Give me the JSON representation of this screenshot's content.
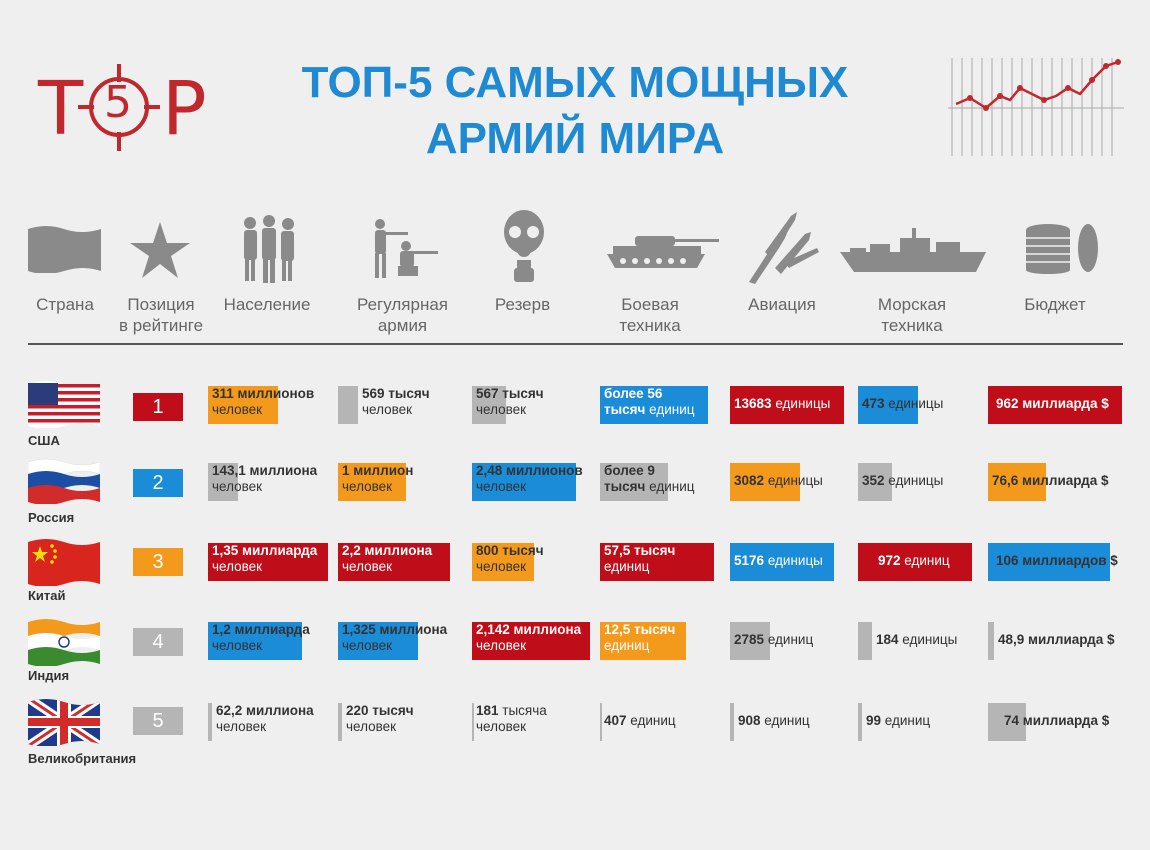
{
  "logo": {
    "left": "T",
    "center": "5",
    "right": "P"
  },
  "title": {
    "line1": "ТОП-5 САМЫХ МОЩНЫХ",
    "line2": "АРМИЙ МИРА"
  },
  "colors": {
    "red": "#bf0e19",
    "blue": "#1a8cd8",
    "orange": "#f39a1c",
    "gray": "#b5b5b5",
    "title": "#1f8ad1"
  },
  "headers": {
    "country": "Страна",
    "rank_l1": "Позиция",
    "rank_l2": "в рейтинге",
    "population": "Население",
    "army_l1": "Регулярная",
    "army_l2": "армия",
    "reserve": "Резерв",
    "tech_l1": "Боевая",
    "tech_l2": "техника",
    "aviation": "Авиация",
    "navy_l1": "Морская",
    "navy_l2": "техника",
    "budget": "Бюджет"
  },
  "rows": [
    {
      "country": "США",
      "rank": "1",
      "pop_b": "311 миллионов",
      "pop_r": "человек",
      "army_b": "569 тысяч",
      "army_r": "человек",
      "reserve_b": "567 тысяч",
      "reserve_r": "человек",
      "tech_b": "более 56",
      "tech_b2": "тысяч",
      "tech_r": "единиц",
      "avia_b": "13683",
      "avia_r": "единицы",
      "navy_b": "473",
      "navy_r": "единицы",
      "budget_b": "962 миллиарда $",
      "budget_r": ""
    },
    {
      "country": "Россия",
      "rank": "2",
      "pop_b": "143,1 миллиона",
      "pop_r": "человек",
      "army_b": "1 миллион",
      "army_r": "человек",
      "reserve_b": "2,48 миллионов",
      "reserve_r": "человек",
      "tech_b": "более 9",
      "tech_b2": "тысяч",
      "tech_r": "единиц",
      "avia_b": "3082",
      "avia_r": "единицы",
      "navy_b": "352",
      "navy_r": "единицы",
      "budget_b": "76,6 миллиарда $",
      "budget_r": ""
    },
    {
      "country": "Китай",
      "rank": "3",
      "pop_b": "1,35 миллиарда",
      "pop_r": "человек",
      "army_b": "2,2 миллиона",
      "army_r": "человек",
      "reserve_b": "800 тысяч",
      "reserve_r": "человек",
      "tech_b": "57,5 тысяч",
      "tech_b2": "",
      "tech_r": "единиц",
      "avia_b": "5176",
      "avia_r": "единицы",
      "navy_b": "972",
      "navy_r": "единиц",
      "budget_b": "106 миллиардов $",
      "budget_r": ""
    },
    {
      "country": "Индия",
      "rank": "4",
      "pop_b": "1,2 миллиарда",
      "pop_r": "человек",
      "army_b": "1,325 миллиона",
      "army_r": "человек",
      "reserve_b": "2,142 миллиона",
      "reserve_r": "человек",
      "tech_b": "12,5 тысяч",
      "tech_b2": "",
      "tech_r": "единиц",
      "avia_b": "2785",
      "avia_r": "единиц",
      "navy_b": "184",
      "navy_r": "единицы",
      "budget_b": "48,9 миллиарда $",
      "budget_r": ""
    },
    {
      "country": "Великобритания",
      "rank": "5",
      "pop_b": "62,2 миллиона",
      "pop_r": "человек",
      "army_b": "220 тысяч",
      "army_r": "человек",
      "reserve_b": "181",
      "reserve_r": "тысяча",
      "reserve_r2": "человек",
      "tech_b": "407",
      "tech_b2": "",
      "tech_r": "единиц",
      "avia_b": "908",
      "avia_r": "единиц",
      "navy_b": "99",
      "navy_r": "единиц",
      "budget_b": "74 миллиарда $",
      "budget_r": ""
    }
  ]
}
